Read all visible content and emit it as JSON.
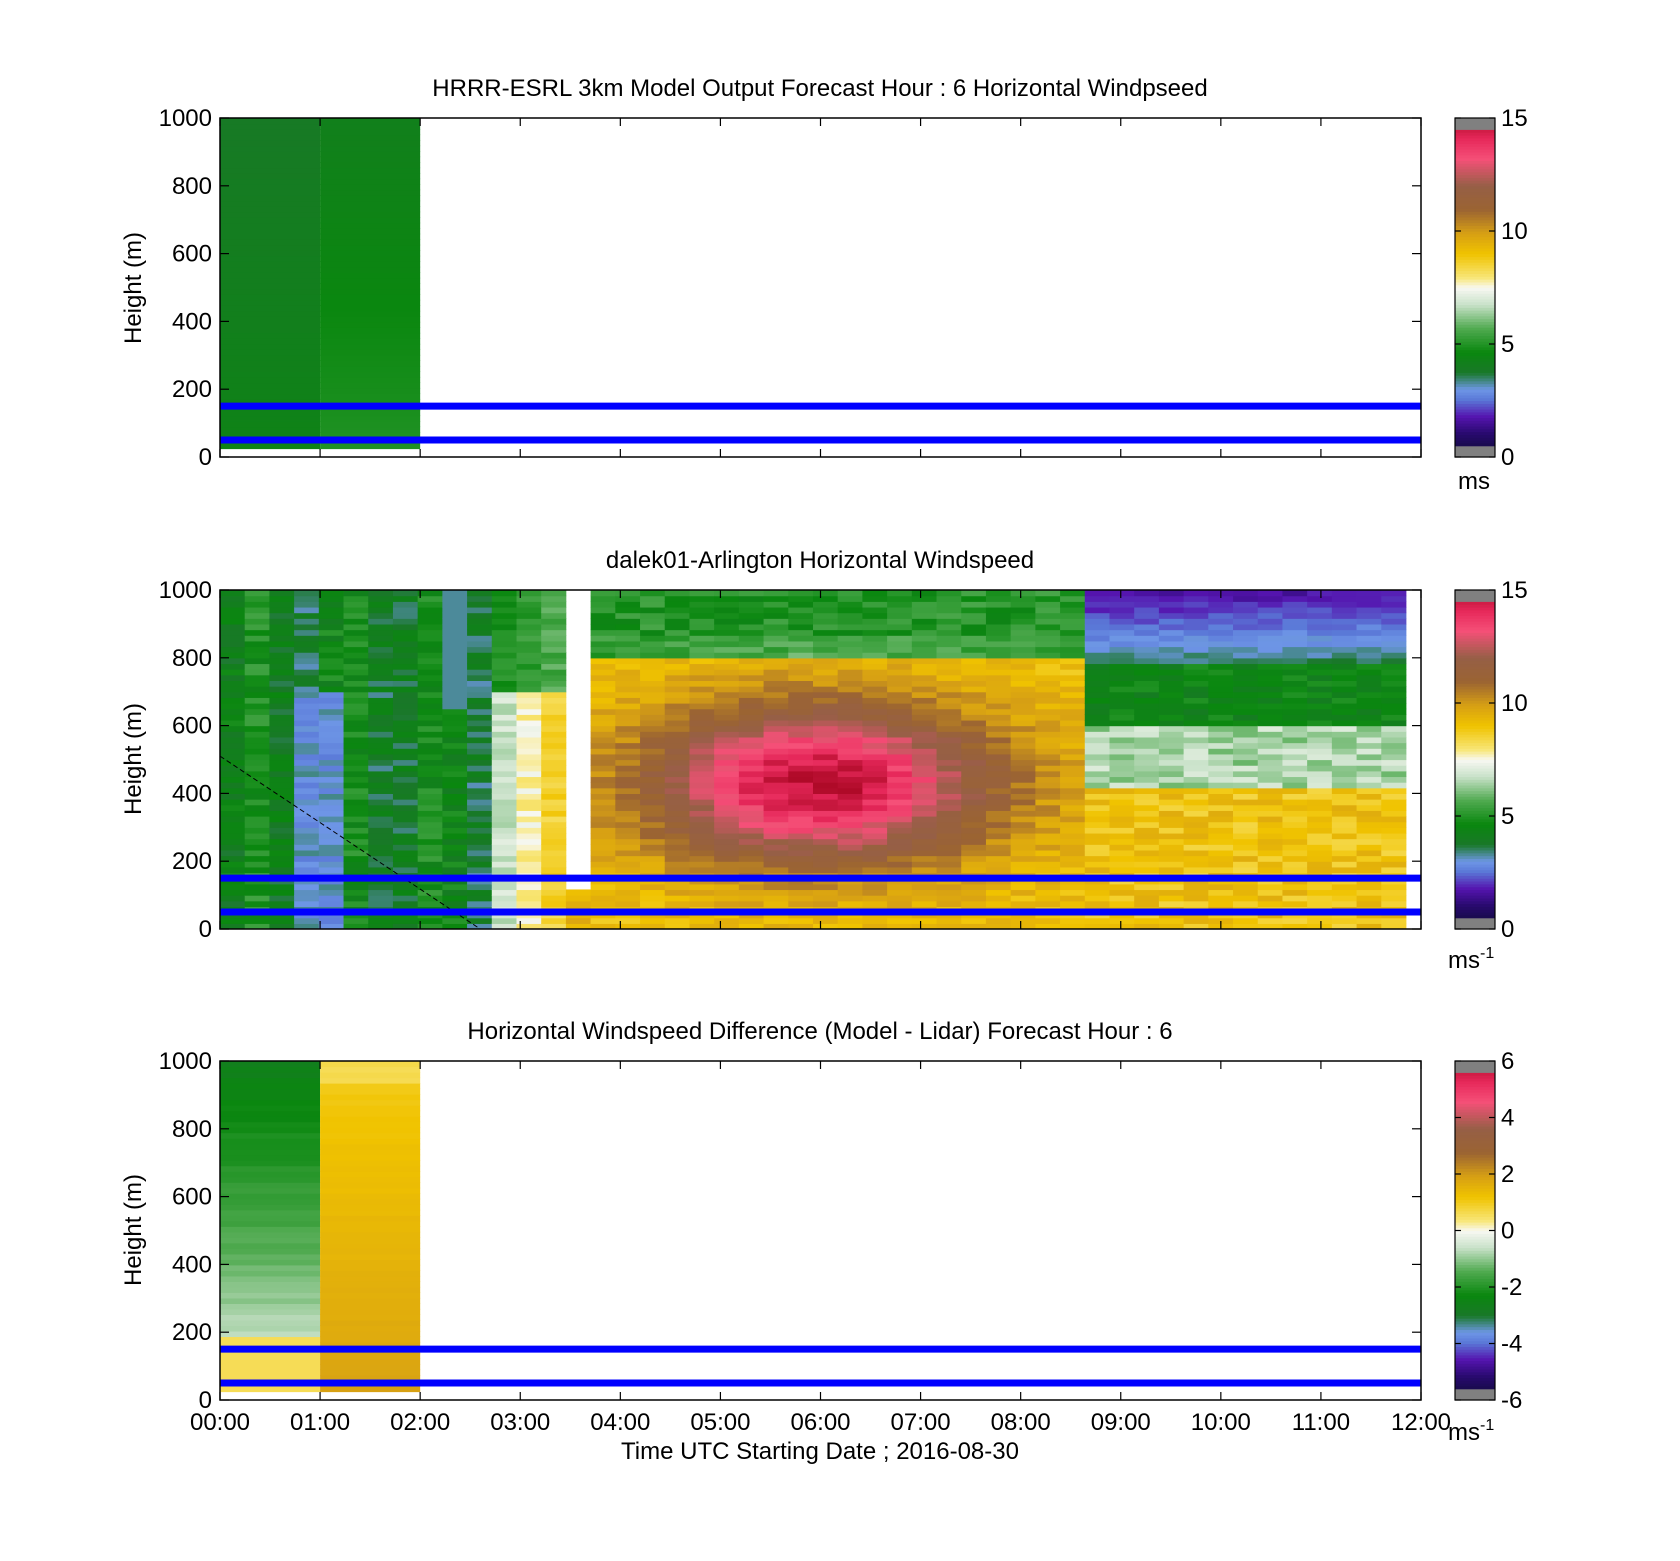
{
  "chart_data": [
    {
      "type": "heatmap",
      "title": "HRRR-ESRL 3km Model Output   Forecast Hour : 6 Horizontal Windpseed",
      "ylabel": "Height (m)",
      "xlabel": "",
      "ylim": [
        0,
        1000
      ],
      "xlim": [
        "00:00",
        "12:00"
      ],
      "y_ticks": [
        "0",
        "200",
        "400",
        "600",
        "800",
        "1000"
      ],
      "x_ticks": [
        "",
        "",
        "",
        "",
        "",
        "",
        "",
        "",
        "",
        "",
        "",
        "",
        ""
      ],
      "colorbar": {
        "min": 0,
        "max": 15,
        "ticks": [
          "0",
          "5",
          "10",
          "15"
        ],
        "unit": "ms",
        "unit_sup": ""
      },
      "reference_lines_m": [
        50,
        150
      ],
      "data": {
        "columns": [
          {
            "t_start_hour": 0,
            "t_end_hour": 1,
            "value_range": [
              3.8,
              4.4
            ],
            "note": ""
          },
          {
            "t_start_hour": 1,
            "t_end_hour": 2,
            "value_range": [
              4.0,
              5.0
            ],
            "note": ""
          }
        ],
        "height_range_m": [
          25,
          1000
        ]
      }
    },
    {
      "type": "heatmap",
      "title": "dalek01-Arlington  Horizontal Windspeed",
      "ylabel": "Height (m)",
      "xlabel": "",
      "ylim": [
        0,
        1000
      ],
      "xlim": [
        "00:00",
        "12:00"
      ],
      "y_ticks": [
        "0",
        "200",
        "400",
        "600",
        "800",
        "1000"
      ],
      "x_ticks": [
        "",
        "",
        "",
        "",
        "",
        "",
        "",
        "",
        "",
        "",
        "",
        "",
        ""
      ],
      "colorbar": {
        "min": 0,
        "max": 15,
        "ticks": [
          "0",
          "5",
          "10",
          "15"
        ],
        "unit": "ms",
        "unit_sup": "-1"
      },
      "reference_lines_m": [
        50,
        150
      ],
      "time_range_hours": [
        0,
        11.85
      ],
      "height_range_m": [
        0,
        1000
      ]
    },
    {
      "type": "heatmap",
      "title": "Horizontal Windspeed Difference (Model - Lidar) Forecast Hour : 6",
      "ylabel": "Height (m)",
      "xlabel": "Time UTC  Starting Date ; 2016-08-30",
      "ylim": [
        0,
        1000
      ],
      "xlim": [
        "00:00",
        "12:00"
      ],
      "y_ticks": [
        "0",
        "200",
        "400",
        "600",
        "800",
        "1000"
      ],
      "x_ticks": [
        "00:00",
        "01:00",
        "02:00",
        "03:00",
        "04:00",
        "05:00",
        "06:00",
        "07:00",
        "08:00",
        "09:00",
        "10:00",
        "11:00",
        "12:00"
      ],
      "colorbar": {
        "min": -6,
        "max": 6,
        "ticks": [
          "-6",
          "-4",
          "-2",
          "0",
          "2",
          "4",
          "6"
        ],
        "unit": "ms",
        "unit_sup": "-1"
      },
      "reference_lines_m": [
        50,
        150
      ],
      "data": {
        "columns": [
          {
            "t_start_hour": 0,
            "t_end_hour": 1,
            "value_range": [
              -2.6,
              0.8
            ],
            "note": ""
          },
          {
            "t_start_hour": 1,
            "t_end_hour": 2,
            "value_range": [
              0.5,
              2.2
            ],
            "note": ""
          }
        ],
        "height_range_m": [
          25,
          1000
        ]
      }
    }
  ],
  "colors": {
    "reference_line": "#0000ff",
    "nan": "#ffffff"
  }
}
